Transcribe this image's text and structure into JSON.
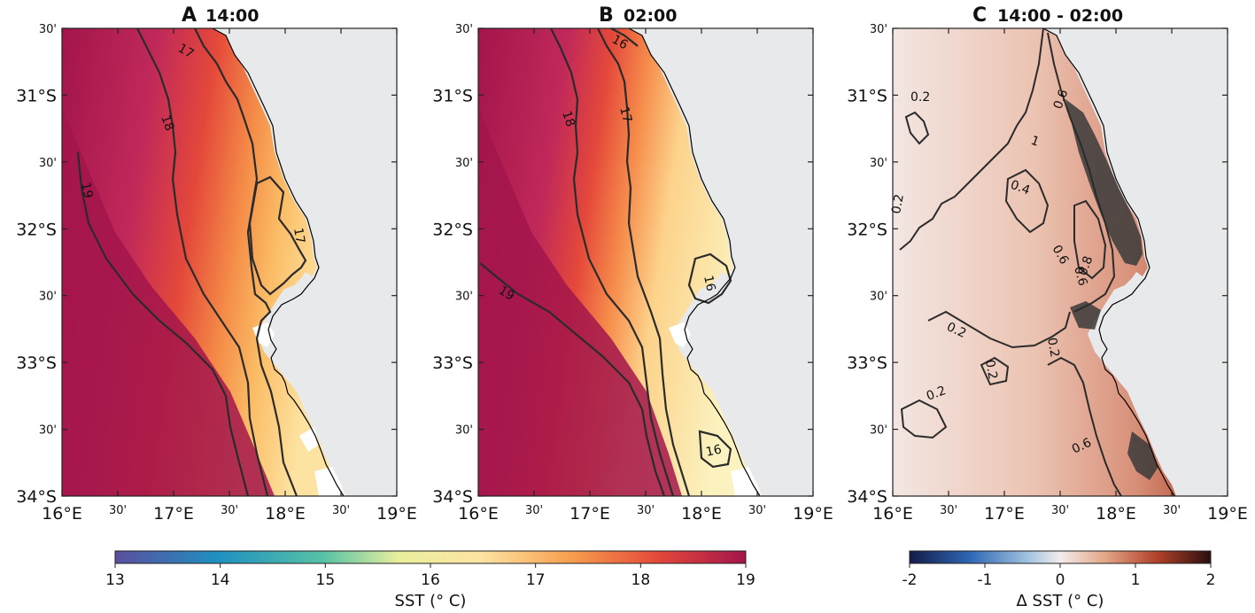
{
  "panels": [
    {
      "letter": "A",
      "time": "14:00",
      "contour_labels": [
        "17",
        "18",
        "19",
        "17"
      ]
    },
    {
      "letter": "B",
      "time": "02:00",
      "contour_labels": [
        "16",
        "17",
        "18",
        "19",
        "16",
        "16"
      ]
    },
    {
      "letter": "C",
      "time": "14:00 - 02:00",
      "contour_labels": [
        "0.2",
        "0.4",
        "0.6",
        "0.8",
        "0.2",
        "0.2",
        "0.6",
        "0.6",
        "1",
        "0.2",
        "0.6",
        "0.2",
        "0.2"
      ]
    }
  ],
  "axes": {
    "lat_major_labels": [
      "31°S",
      "32°S",
      "33°S",
      "34°S"
    ],
    "lat_minor_label": "30'",
    "lon_major_labels": [
      "16°E",
      "17°E",
      "18°E",
      "19°E"
    ],
    "lon_minor_label": "30'"
  },
  "colorbars": [
    {
      "id": "sst",
      "label": "SST (° C)",
      "ticks": [
        "13",
        "14",
        "15",
        "16",
        "17",
        "18",
        "19"
      ],
      "range": [
        13,
        19
      ],
      "colors": [
        "#5b4f9e",
        "#1f8fc0",
        "#57c2a6",
        "#e9ef9c",
        "#fde3a2",
        "#f6a04f",
        "#e4483a",
        "#a3154b"
      ]
    },
    {
      "id": "delta",
      "label": "Δ SST (° C)",
      "ticks": [
        "-2",
        "-1",
        "0",
        "1",
        "2"
      ],
      "range": [
        -2,
        2
      ],
      "colors": [
        "#141c49",
        "#2e67b4",
        "#a5c6df",
        "#f3ecec",
        "#e3a586",
        "#b2412a",
        "#2a0e0e"
      ]
    }
  ],
  "map": {
    "land_color": "#e8e9eb",
    "coast_color": "#000000",
    "contour_color": "#2b2b2b"
  }
}
